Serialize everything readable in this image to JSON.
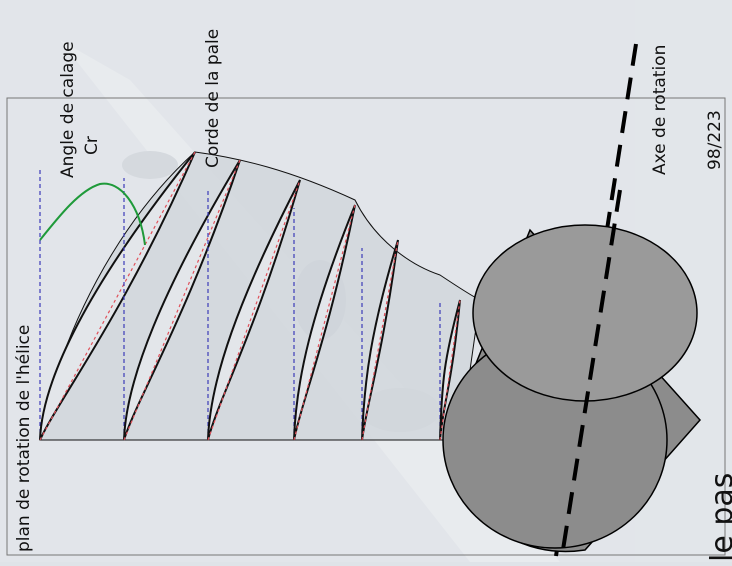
{
  "labels": {
    "plan_rotation": "plan de rotation de l'hélice",
    "angle_calage": "Angle de calage",
    "cr": "Cr",
    "corde": "Corde de la pale",
    "axe_rotation": "Axe de rotation",
    "page_number": "98/223",
    "le_pas": "le pas"
  },
  "colors": {
    "background": "#dfe3e8",
    "blade_fill": "#cfd4da",
    "hub_fill": "#8c8c8c",
    "plane_line": "#3b3bb8",
    "chord_line": "#e0505a",
    "angle_arc": "#1f9a3a",
    "outline": "#111111"
  }
}
